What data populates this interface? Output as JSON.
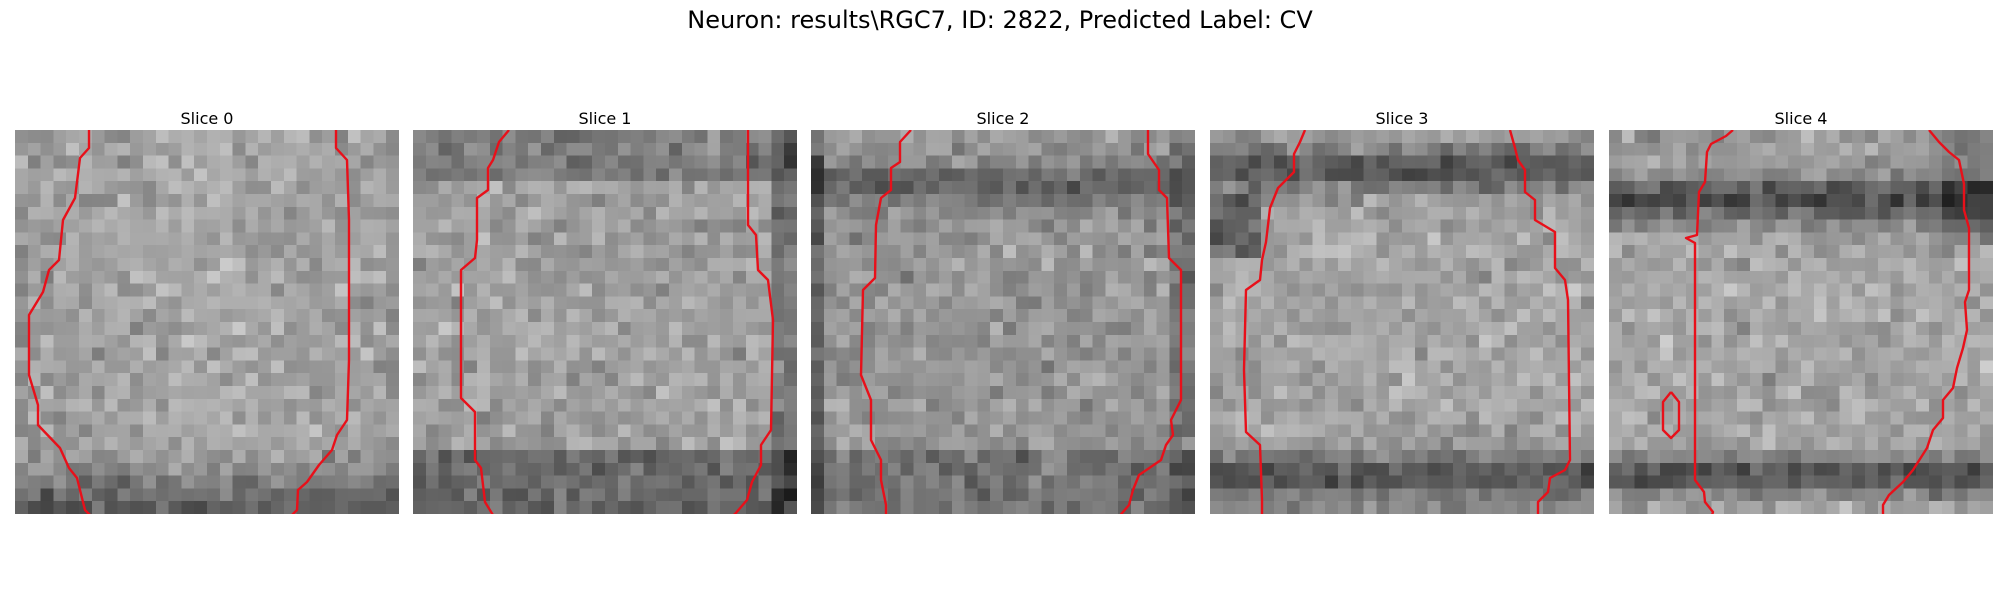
{
  "figure": {
    "title": "Neuron: results\\RGC7, ID: 2822, Predicted Label: CV"
  },
  "colors": {
    "contour": "#e8101a",
    "background": "#ffffff"
  },
  "panels": [
    {
      "title": "Slice 0"
    },
    {
      "title": "Slice 1"
    },
    {
      "title": "Slice 2"
    },
    {
      "title": "Slice 3"
    },
    {
      "title": "Slice 4"
    }
  ]
}
